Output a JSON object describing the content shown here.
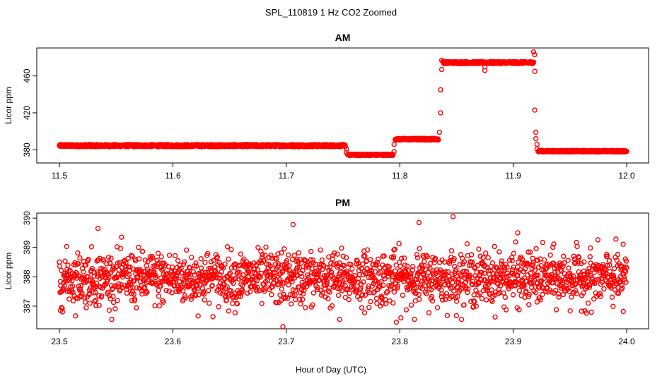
{
  "figure": {
    "title": "SPL_110819  1 Hz CO2 Zoomed",
    "xlabel": "Hour of Day (UTC)"
  },
  "colors": {
    "points": "#ff0000",
    "axes": "#000000"
  },
  "chart_data": [
    {
      "type": "scatter",
      "title": "AM",
      "xlabel": "",
      "ylabel": "Licor ppm",
      "xlim": [
        11.5,
        12.0
      ],
      "ylim": [
        368,
        488
      ],
      "xticks": [
        11.5,
        11.6,
        11.7,
        11.8,
        11.9,
        12.0
      ],
      "xtick_labels": [
        "11.5",
        "11.6",
        "11.7",
        "11.8",
        "11.9",
        "12.0"
      ],
      "yticks": [
        380,
        420,
        460
      ],
      "ytick_labels": [
        "380",
        "420",
        "460"
      ],
      "segments": [
        {
          "x_start": 11.5,
          "x_end": 11.752,
          "level": 384.5,
          "noise": 1.2
        },
        {
          "x_start": 11.755,
          "x_end": 11.794,
          "level": 374.5,
          "noise": 0.8
        },
        {
          "x_start": 11.796,
          "x_end": 11.834,
          "level": 391.5,
          "noise": 0.9
        },
        {
          "x_start": 11.838,
          "x_end": 11.918,
          "level": 474.5,
          "noise": 1.1
        },
        {
          "x_start": 11.922,
          "x_end": 12.0,
          "level": 378.5,
          "noise": 0.8
        }
      ],
      "transition_points": [
        [
          11.753,
          381
        ],
        [
          11.753,
          377
        ],
        [
          11.754,
          375
        ],
        [
          11.795,
          378
        ],
        [
          11.795,
          386
        ],
        [
          11.835,
          399
        ],
        [
          11.836,
          420
        ],
        [
          11.836,
          445
        ],
        [
          11.837,
          467
        ],
        [
          11.837,
          477
        ],
        [
          11.875,
          470
        ],
        [
          11.875,
          466
        ],
        [
          11.918,
          486
        ],
        [
          11.919,
          483
        ],
        [
          11.919,
          465
        ],
        [
          11.919,
          423
        ],
        [
          11.92,
          399
        ],
        [
          11.92,
          392
        ],
        [
          11.921,
          386
        ],
        [
          11.921,
          381
        ]
      ]
    },
    {
      "type": "scatter",
      "title": "PM",
      "xlabel": "",
      "ylabel": "Licor ppm",
      "xlim": [
        23.5,
        24.0
      ],
      "ylim": [
        386.3,
        390.1
      ],
      "xticks": [
        23.5,
        23.6,
        23.7,
        23.8,
        23.9,
        24.0
      ],
      "xtick_labels": [
        "23.5",
        "23.6",
        "23.7",
        "23.8",
        "23.9",
        "24.0"
      ],
      "yticks": [
        387,
        388,
        389,
        390
      ],
      "ytick_labels": [
        "387",
        "388",
        "389",
        "390"
      ],
      "mean": 387.95,
      "sd": 0.45,
      "n_points": 1800,
      "outliers": [
        [
          23.534,
          389.65
        ],
        [
          23.706,
          389.78
        ],
        [
          23.817,
          389.85
        ],
        [
          23.847,
          390.05
        ],
        [
          23.904,
          389.5
        ],
        [
          23.697,
          386.3
        ],
        [
          23.797,
          386.45
        ],
        [
          23.747,
          386.55
        ],
        [
          23.997,
          386.82
        ],
        [
          23.501,
          386.85
        ]
      ]
    }
  ]
}
